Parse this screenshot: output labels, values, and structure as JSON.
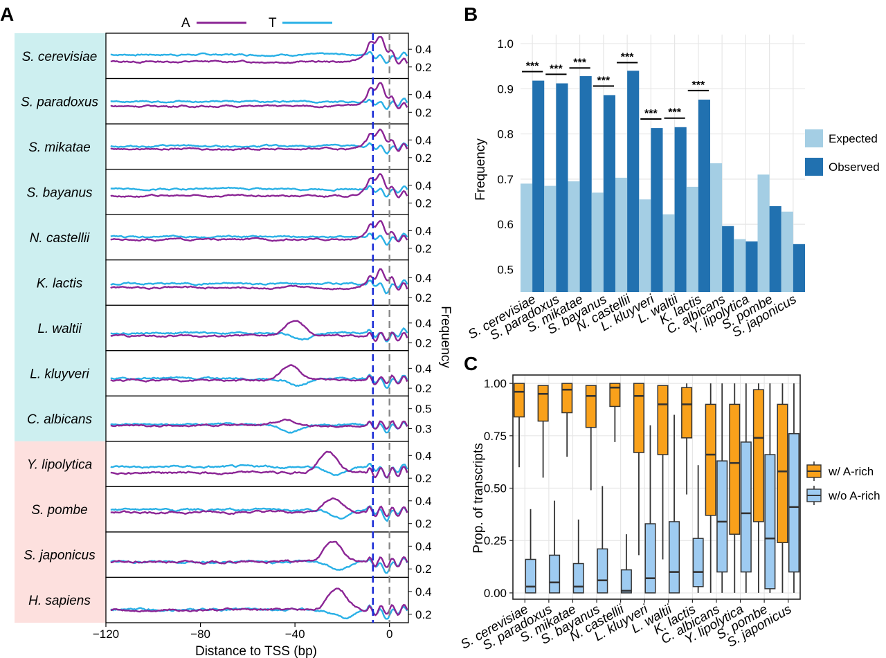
{
  "panel_labels": [
    "A",
    "B",
    "C"
  ],
  "colors": {
    "A": "#8b2595",
    "T": "#29b0e6",
    "clade1_bg": "#cdeff0",
    "clade2_bg": "#fde0de",
    "expected": "#a4cee4",
    "observed": "#2171b0",
    "w_arich": "#f9a11b",
    "wo_arich": "#9ecbf1",
    "tss_blue": "#1a2cd6",
    "tss_grey": "#888888",
    "grid": "#e6e6e6"
  },
  "chart_data": [
    {
      "type": "line",
      "panel": "A",
      "legend": [
        {
          "name": "A",
          "color": "#8b2595"
        },
        {
          "name": "T",
          "color": "#29b0e6"
        }
      ],
      "xlabel": "Distance to TSS (bp)",
      "ylabel": "Frequency",
      "xlim": [
        -120,
        8
      ],
      "xticks": [
        -120,
        -80,
        -40,
        0
      ],
      "xtick_labels": [
        "−120",
        "−80",
        "−40",
        "0"
      ],
      "vlines": [
        -7,
        0
      ],
      "species": [
        {
          "name": "S. cerevisiae",
          "clade": 1,
          "ylim": [
            0.1,
            0.55
          ],
          "yticks": [
            0.4,
            0.2
          ],
          "A_base": 0.26,
          "T_base": 0.34,
          "A_peak_x": -5,
          "A_peak": 0.52
        },
        {
          "name": "S. paradoxus",
          "clade": 1,
          "ylim": [
            0.1,
            0.55
          ],
          "yticks": [
            0.4,
            0.2
          ],
          "A_base": 0.27,
          "T_base": 0.32,
          "A_peak_x": -5,
          "A_peak": 0.5
        },
        {
          "name": "S. mikatae",
          "clade": 1,
          "ylim": [
            0.1,
            0.55
          ],
          "yticks": [
            0.4,
            0.2
          ],
          "A_base": 0.3,
          "T_base": 0.33,
          "A_peak_x": -5,
          "A_peak": 0.5
        },
        {
          "name": "S. bayanus",
          "clade": 1,
          "ylim": [
            0.1,
            0.55
          ],
          "yticks": [
            0.4,
            0.2
          ],
          "A_base": 0.28,
          "T_base": 0.36,
          "A_peak_x": -5,
          "A_peak": 0.5
        },
        {
          "name": "N. castellii",
          "clade": 1,
          "ylim": [
            0.1,
            0.55
          ],
          "yticks": [
            0.4,
            0.2
          ],
          "A_base": 0.3,
          "T_base": 0.33,
          "A_peak_x": -5,
          "A_peak": 0.48
        },
        {
          "name": "K. lactis",
          "clade": 1,
          "ylim": [
            0.15,
            0.55
          ],
          "yticks": [
            0.4,
            0.2
          ],
          "A_base": 0.3,
          "T_base": 0.34,
          "A_peak_x": -4,
          "A_peak": 0.46
        },
        {
          "name": "L. waltii",
          "clade": 1,
          "ylim": [
            0.15,
            0.55
          ],
          "yticks": [
            0.4,
            0.2
          ],
          "A_base": 0.27,
          "T_base": 0.3,
          "A_peak_x": -40,
          "A_peak": 0.42
        },
        {
          "name": "L. kluyveri",
          "clade": 1,
          "ylim": [
            0.15,
            0.55
          ],
          "yticks": [
            0.4,
            0.2
          ],
          "A_base": 0.28,
          "T_base": 0.3,
          "A_peak_x": -42,
          "A_peak": 0.43
        },
        {
          "name": "C. albicans",
          "clade": 1,
          "ylim": [
            0.2,
            0.6
          ],
          "yticks": [
            0.5,
            0.3
          ],
          "A_base": 0.33,
          "T_base": 0.34,
          "A_peak_x": -44,
          "A_peak": 0.39
        },
        {
          "name": "Y. lipolytica",
          "clade": 2,
          "ylim": [
            0.15,
            0.5
          ],
          "yticks": [
            0.4,
            0.2
          ],
          "A_base": 0.25,
          "T_base": 0.3,
          "A_peak_x": -26,
          "A_peak": 0.43
        },
        {
          "name": "S. pombe",
          "clade": 2,
          "ylim": [
            0.15,
            0.5
          ],
          "yticks": [
            0.4,
            0.2
          ],
          "A_base": 0.3,
          "T_base": 0.32,
          "A_peak_x": -24,
          "A_peak": 0.43
        },
        {
          "name": "S. japonicus",
          "clade": 2,
          "ylim": [
            0.15,
            0.5
          ],
          "yticks": [
            0.4,
            0.2
          ],
          "A_base": 0.26,
          "T_base": 0.26,
          "A_peak_x": -24,
          "A_peak": 0.44
        },
        {
          "name": "H. sapiens",
          "clade": 2,
          "ylim": [
            0.15,
            0.5
          ],
          "yticks": [
            0.4,
            0.2
          ],
          "A_base": 0.24,
          "T_base": 0.24,
          "A_peak_x": -22,
          "A_peak": 0.43
        }
      ]
    },
    {
      "type": "bar",
      "panel": "B",
      "ylabel": "Frequency",
      "ylim": [
        0.45,
        1.02
      ],
      "yticks": [
        0.5,
        0.6,
        0.7,
        0.8,
        0.9,
        1.0
      ],
      "ytick_labels": [
        "0.5",
        "0.6",
        "0.7",
        "0.8",
        "0.9",
        "1.0"
      ],
      "categories": [
        "S. cerevisiae",
        "S. paradoxus",
        "S. mikatae",
        "S. bayanus",
        "N. castellii",
        "L. kluyveri",
        "L. waltii",
        "K. lactis",
        "C. albicans",
        "Y. lipolytica",
        "S. pombe",
        "S. japonicus"
      ],
      "series": [
        {
          "name": "Expected",
          "values": [
            0.69,
            0.685,
            0.695,
            0.67,
            0.703,
            0.655,
            0.622,
            0.683,
            0.735,
            0.567,
            0.71,
            0.628
          ]
        },
        {
          "name": "Observed",
          "values": [
            0.918,
            0.912,
            0.928,
            0.886,
            0.94,
            0.813,
            0.815,
            0.876,
            0.596,
            0.562,
            0.64,
            0.556
          ]
        }
      ],
      "significance": [
        {
          "label": "***",
          "values": [
            0.938,
            0.932,
            0.946,
            0.906,
            0.958,
            0.833,
            0.835,
            0.896
          ]
        }
      ]
    },
    {
      "type": "box",
      "panel": "C",
      "ylabel": "Prop. of transcripts",
      "ylim": [
        -0.03,
        1.04
      ],
      "yticks": [
        0.0,
        0.25,
        0.5,
        0.75,
        1.0
      ],
      "ytick_labels": [
        "0.00",
        "0.25",
        "0.50",
        "0.75",
        "1.00"
      ],
      "categories": [
        "S. cerevisiae",
        "S. paradoxus",
        "S. mikatae",
        "S. bayanus",
        "N. castellii",
        "L. kluyveri",
        "L. waltii",
        "K. lactis",
        "C. albicans",
        "Y. lipolytica",
        "S. pombe",
        "S. japonicus"
      ],
      "series": [
        {
          "name": "w/ A-rich",
          "boxes": [
            [
              0.6,
              0.84,
              0.96,
              1.0,
              1.0
            ],
            [
              0.55,
              0.82,
              0.95,
              0.99,
              0.99
            ],
            [
              0.65,
              0.86,
              0.97,
              1.0,
              1.0
            ],
            [
              0.49,
              0.79,
              0.94,
              0.99,
              0.99
            ],
            [
              0.72,
              0.89,
              0.98,
              1.0,
              1.0
            ],
            [
              0.18,
              0.67,
              0.94,
              1.0,
              1.0
            ],
            [
              0.16,
              0.66,
              0.9,
              0.99,
              0.99
            ],
            [
              0.47,
              0.74,
              0.9,
              0.98,
              1.0
            ],
            [
              0.0,
              0.37,
              0.66,
              0.9,
              1.0
            ],
            [
              0.0,
              0.28,
              0.62,
              0.9,
              1.0
            ],
            [
              0.0,
              0.34,
              0.74,
              0.97,
              1.0
            ],
            [
              0.0,
              0.24,
              0.58,
              0.9,
              1.0
            ]
          ]
        },
        {
          "name": "w/o A-rich",
          "boxes": [
            [
              0.0,
              0.0,
              0.03,
              0.16,
              0.4
            ],
            [
              0.0,
              0.0,
              0.05,
              0.18,
              0.44
            ],
            [
              0.0,
              0.0,
              0.03,
              0.14,
              0.35
            ],
            [
              0.0,
              0.0,
              0.06,
              0.21,
              0.51
            ],
            [
              0.0,
              0.0,
              0.01,
              0.11,
              0.28
            ],
            [
              0.0,
              0.0,
              0.07,
              0.33,
              0.8
            ],
            [
              0.0,
              0.0,
              0.1,
              0.34,
              0.85
            ],
            [
              0.0,
              0.03,
              0.1,
              0.26,
              0.61
            ],
            [
              0.0,
              0.1,
              0.34,
              0.63,
              1.0
            ],
            [
              0.0,
              0.1,
              0.38,
              0.72,
              1.0
            ],
            [
              0.0,
              0.02,
              0.26,
              0.66,
              1.0
            ],
            [
              0.0,
              0.1,
              0.41,
              0.76,
              1.0
            ]
          ]
        }
      ]
    }
  ]
}
